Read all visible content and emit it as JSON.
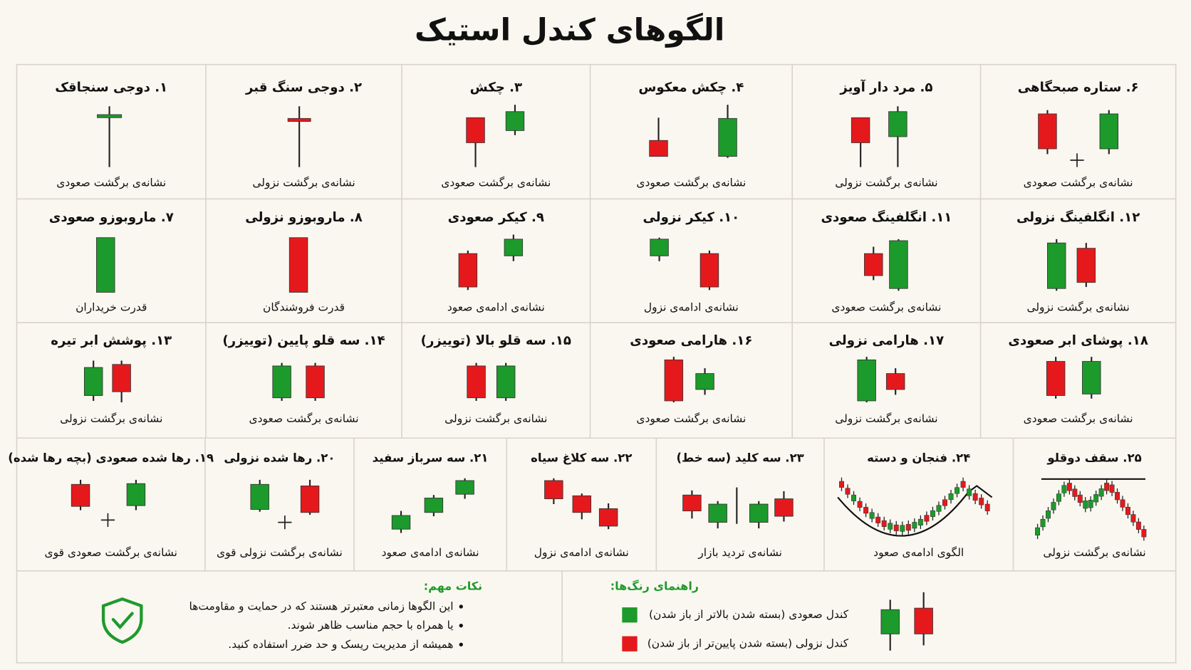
{
  "header": {
    "title": "الگوهای کندل استیک"
  },
  "patterns": [
    {
      "title": "۱. دوجی سنجاقک",
      "caption": "نشانه‌ی برگشت صعودی"
    },
    {
      "title": "۲. دوجی سنگ قبر",
      "caption": "نشانه‌ی برگشت نزولی"
    },
    {
      "title": "۳. چکش",
      "caption": "نشانه‌ی برگشت صعودی"
    },
    {
      "title": "۴. چکش معکوس",
      "caption": "نشانه‌ی برگشت صعودی"
    },
    {
      "title": "۵. مرد دار آویز",
      "caption": "نشانه‌ی برگشت نزولی"
    },
    {
      "title": "۶. ستاره صبحگاهی",
      "caption": "نشانه‌ی برگشت صعودی"
    },
    {
      "title": "۷. ماروبوزو صعودی",
      "caption": "قدرت خریداران"
    },
    {
      "title": "۸. ماروبوزو نزولی",
      "caption": "قدرت فروشندگان"
    },
    {
      "title": "۹. کیکر صعودی",
      "caption": "نشانه‌ی ادامه‌ی صعود"
    },
    {
      "title": "۱۰. کیکر نزولی",
      "caption": "نشانه‌ی ادامه‌ی نزول"
    },
    {
      "title": "۱۱. انگلفینگ صعودی",
      "caption": "نشانه‌ی برگشت صعودی"
    },
    {
      "title": "۱۲. انگلفینگ نزولی",
      "caption": "نشانه‌ی برگشت نزولی"
    },
    {
      "title": "۱۳. پوشش ابر تیره",
      "caption": "نشانه‌ی برگشت نزولی"
    },
    {
      "title": "۱۴. سه قلو پایین (توییزر)",
      "caption": "نشانه‌ی برگشت صعودی"
    },
    {
      "title": "۱۵. سه قلو بالا (توییزر)",
      "caption": "نشانه‌ی برگشت نزولی"
    },
    {
      "title": "۱۶. هارامی صعودی",
      "caption": "نشانه‌ی برگشت صعودی"
    },
    {
      "title": "۱۷. هارامی نزولی",
      "caption": "نشانه‌ی برگشت نزولی"
    },
    {
      "title": "۱۸. پوشای ابر صعودی",
      "caption": "نشانه‌ی برگشت صعودی"
    },
    {
      "title": "۱۹. رها شده صعودی (بچه رها شده)",
      "caption": "نشانه‌ی برگشت صعودی قوی"
    },
    {
      "title": "۲۰. رها شده نزولی",
      "caption": "نشانه‌ی برگشت نزولی قوی"
    },
    {
      "title": "۲۱. سه سرباز سفید",
      "caption": "نشانه‌ی ادامه‌ی صعود"
    },
    {
      "title": "۲۲. سه کلاغ سیاه",
      "caption": "نشانه‌ی ادامه‌ی نزول"
    },
    {
      "title": "۲۳. سه کلید (سه خط)",
      "caption": "نشانه‌ی تردید بازار"
    },
    {
      "title": "۲۴. فنجان و دسته",
      "caption": "الگوی ادامه‌ی صعود"
    },
    {
      "title": "۲۵. سقف دوقلو",
      "caption": "نشانه‌ی برگشت نزولی"
    }
  ],
  "notes": {
    "title": "نکات مهم:",
    "items": [
      "این الگوها زمانی معتبرتر هستند که در حمایت و مقاومت‌ها",
      "یا همراه با حجم مناسب ظاهر شوند.",
      "همیشه از مدیریت ریسک و حد ضرر استفاده کنید."
    ]
  },
  "legend": {
    "title": "راهنمای رنگ‌ها:",
    "items": [
      "کندل صعودی (بسته شدن بالاتر از باز شدن)",
      "کندل نزولی (بسته شدن پایین‌تر از باز شدن)"
    ]
  }
}
